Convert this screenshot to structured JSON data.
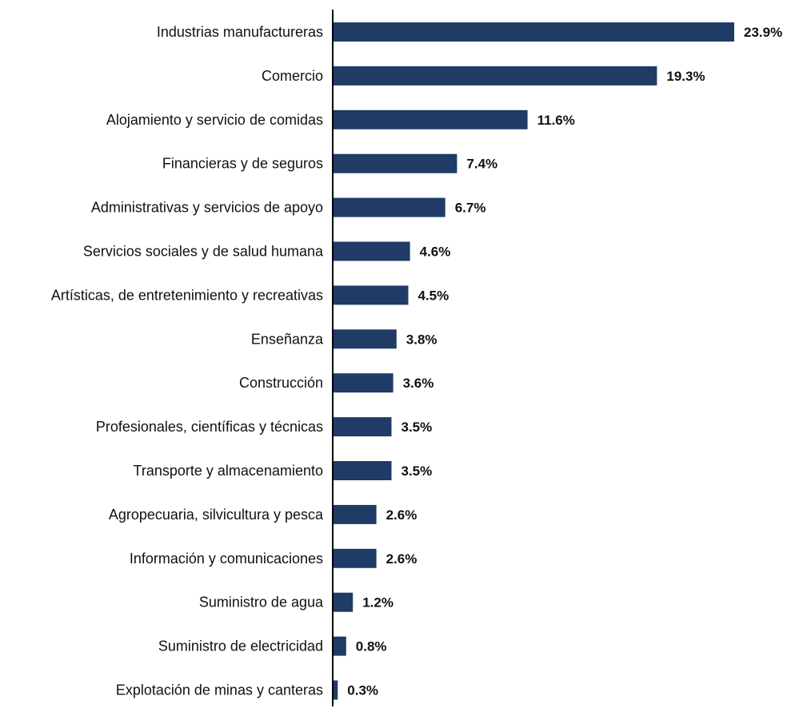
{
  "chart_data": {
    "type": "bar",
    "orientation": "horizontal",
    "categories": [
      "Industrias manufactureras",
      "Comercio",
      "Alojamiento y servicio de comidas",
      "Financieras y de seguros",
      "Administrativas y servicios de apoyo",
      "Servicios sociales y de salud humana",
      "Artísticas, de entretenimiento y recreativas",
      "Enseñanza",
      "Construcción",
      "Profesionales, científicas y técnicas",
      "Transporte y almacenamiento",
      "Agropecuaria, silvicultura y pesca",
      "Información y comunicaciones",
      "Suministro de agua",
      "Suministro de electricidad",
      "Explotación de minas y canteras"
    ],
    "values": [
      23.9,
      19.3,
      11.6,
      7.4,
      6.7,
      4.6,
      4.5,
      3.8,
      3.6,
      3.5,
      3.5,
      2.6,
      2.6,
      1.2,
      0.8,
      0.3
    ],
    "value_labels": [
      "23.9%",
      "19.3%",
      "11.6%",
      "7.4%",
      "6.7%",
      "4.6%",
      "4.5%",
      "3.8%",
      "3.6%",
      "3.5%",
      "3.5%",
      "2.6%",
      "2.6%",
      "1.2%",
      "0.8%",
      "0.3%"
    ],
    "xlim": [
      0,
      23.9
    ],
    "grid": false,
    "legend": "none",
    "bar_color": "#1f3b66",
    "axis_color": "#000000"
  }
}
